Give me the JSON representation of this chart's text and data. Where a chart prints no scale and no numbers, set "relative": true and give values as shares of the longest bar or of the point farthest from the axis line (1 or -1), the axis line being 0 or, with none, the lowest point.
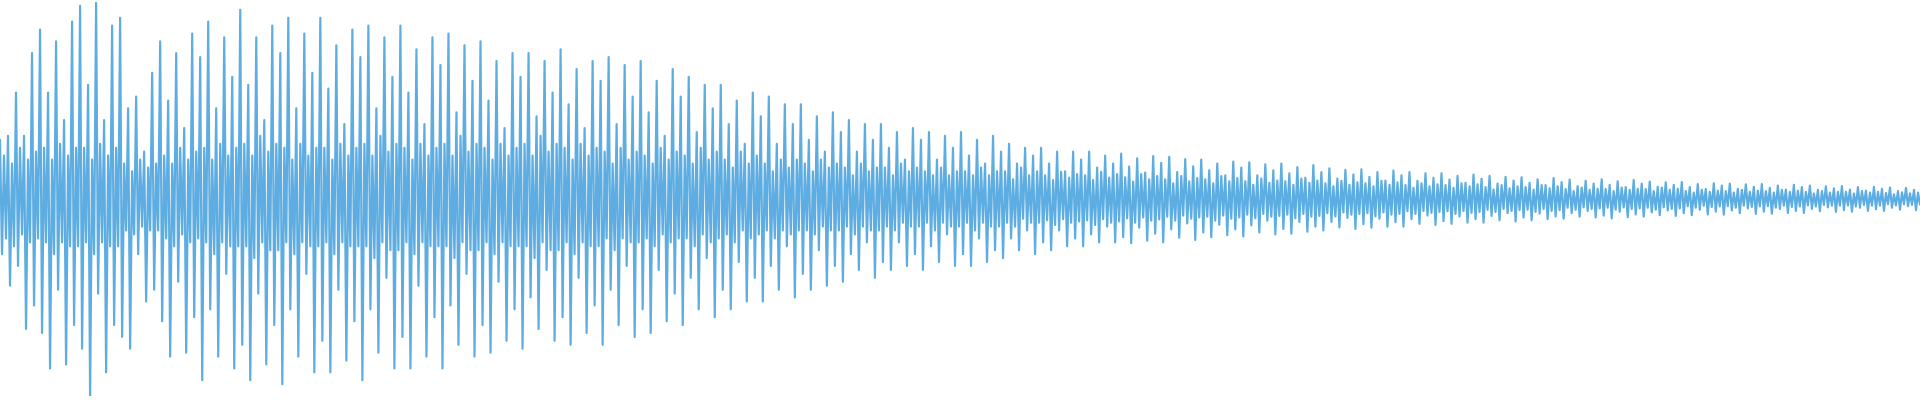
{
  "chart_data": {
    "type": "line",
    "relative": true,
    "color": "#5dade2",
    "categories": [
      null,
      null,
      null,
      null,
      null,
      null,
      null,
      null,
      null,
      null,
      null,
      null,
      null,
      null,
      null,
      null,
      null,
      null,
      null,
      null,
      null,
      null,
      null,
      null,
      null,
      null,
      null,
      null,
      null,
      null,
      null,
      null,
      null,
      null,
      null,
      null,
      null,
      null,
      null,
      null,
      null,
      null,
      null,
      null,
      null,
      null,
      null,
      null,
      null,
      null,
      null,
      null,
      null,
      null,
      null,
      null,
      null,
      null,
      null,
      null,
      null,
      null,
      null,
      null,
      null,
      null,
      null,
      null,
      null,
      null,
      null,
      null,
      null,
      null,
      null,
      null,
      null,
      null,
      null,
      null,
      null,
      null,
      null,
      null,
      null,
      null,
      null,
      null,
      null,
      null,
      null,
      null,
      null,
      null,
      null,
      null,
      null,
      null,
      null,
      null,
      null,
      null,
      null,
      null,
      null,
      null,
      null,
      null,
      null,
      null,
      null,
      null,
      null,
      null,
      null,
      null,
      null,
      null,
      null,
      null,
      null,
      null,
      null,
      null,
      null,
      null,
      null,
      null,
      null,
      null,
      null,
      null,
      null,
      null,
      null,
      null,
      null,
      null,
      null,
      null,
      null,
      null,
      null,
      null,
      null,
      null,
      null,
      null,
      null,
      null,
      null,
      null,
      null,
      null,
      null,
      null,
      null,
      null,
      null,
      null,
      null,
      null,
      null,
      null,
      null,
      null,
      null,
      null,
      null,
      null,
      null,
      null,
      null,
      null,
      null,
      null,
      null,
      null,
      null,
      null,
      null,
      null,
      null,
      null,
      null,
      null,
      null,
      null,
      null,
      null,
      null,
      null,
      null,
      null,
      null,
      null,
      null,
      null,
      null,
      null,
      null,
      null,
      null,
      null,
      null,
      null,
      null,
      null,
      null,
      null,
      null,
      null,
      null,
      null,
      null,
      null,
      null,
      null,
      null,
      null,
      null,
      null,
      null,
      null,
      null,
      null,
      null,
      null,
      null,
      null,
      null,
      null,
      null,
      null,
      null,
      null,
      null,
      null,
      null,
      null,
      null,
      null,
      null,
      null,
      null,
      null,
      null,
      null,
      null,
      null,
      null,
      null,
      null,
      null,
      null,
      null,
      null,
      null,
      null,
      null,
      null,
      null,
      null,
      null,
      null,
      null,
      null,
      null,
      null,
      null,
      null,
      null,
      null,
      null,
      null,
      null,
      null,
      null,
      null,
      null,
      null,
      null,
      null,
      null,
      null,
      null,
      null,
      null,
      null,
      null,
      null,
      null,
      null,
      null,
      null,
      null,
      null,
      null,
      null,
      null,
      null,
      null,
      null,
      null,
      null,
      null,
      null,
      null,
      null,
      null,
      null,
      null,
      null,
      null,
      null,
      null,
      null,
      null,
      null,
      null,
      null,
      null,
      null,
      null,
      null,
      null,
      null,
      null,
      null,
      null,
      null,
      null,
      null,
      null,
      null,
      null,
      null,
      null,
      null,
      null,
      null,
      null,
      null,
      null,
      null,
      null,
      null,
      null,
      null,
      null,
      null,
      null,
      null,
      null,
      null,
      null,
      null,
      null,
      null,
      null,
      null,
      null,
      null,
      null,
      null,
      null,
      null,
      null,
      null,
      null,
      null,
      null,
      null,
      null,
      null,
      null,
      null,
      null,
      null,
      null,
      null,
      null,
      null,
      null,
      null,
      null,
      null,
      null,
      null,
      null,
      null,
      null,
      null,
      null,
      null,
      null,
      null,
      null,
      null,
      null,
      null,
      null,
      null,
      null,
      null,
      null,
      null,
      null,
      null,
      null,
      null,
      null,
      null,
      null,
      null,
      null,
      null,
      null,
      null,
      null,
      null,
      null,
      null,
      null,
      null,
      null,
      null,
      null,
      null,
      null,
      null,
      null,
      null,
      null,
      null,
      null,
      null,
      null,
      null,
      null,
      null,
      null,
      null,
      null,
      null,
      null,
      null,
      null,
      null,
      null,
      null,
      null,
      null,
      null,
      null,
      null,
      null,
      null,
      null,
      null,
      null,
      null,
      null,
      null,
      null,
      null,
      null,
      null,
      null,
      null,
      null,
      null,
      null,
      null,
      null,
      null,
      null,
      null,
      null,
      null,
      null,
      null,
      null,
      null,
      null,
      null,
      null,
      null,
      null,
      null,
      null,
      null,
      null,
      null,
      null,
      null,
      null,
      null,
      null,
      null,
      null,
      null,
      null,
      null,
      null,
      null,
      null,
      null,
      null,
      null,
      null,
      null,
      null,
      null,
      null,
      null,
      null,
      null,
      null,
      null,
      null,
      null,
      null,
      null,
      null,
      null,
      null,
      null,
      null,
      null,
      null,
      null,
      null,
      null,
      null,
      null,
      null,
      null,
      null,
      null,
      null,
      null,
      null,
      null,
      null,
      null,
      null,
      null,
      null,
      null,
      null,
      null,
      null,
      null,
      null,
      null,
      null,
      null,
      null,
      null,
      null,
      null,
      null,
      null,
      null,
      null,
      null,
      null,
      null,
      null,
      null,
      null,
      null,
      null,
      null,
      null,
      null,
      null,
      null,
      null,
      null,
      null,
      null,
      null,
      null,
      null,
      null,
      null,
      null,
      null,
      null,
      null,
      null,
      null,
      null,
      null,
      null,
      null,
      null,
      null,
      null,
      null,
      null,
      null,
      null,
      null,
      null,
      null,
      null,
      null,
      null,
      null,
      null,
      null,
      null,
      null,
      null,
      null,
      null,
      null,
      null,
      null,
      null,
      null,
      null,
      null,
      null,
      null,
      null,
      null,
      null,
      null,
      null,
      null,
      null,
      null,
      null,
      null,
      null,
      null,
      null,
      null,
      null,
      null,
      null,
      null,
      null,
      null,
      null,
      null,
      null,
      null,
      null,
      null,
      null,
      null,
      null,
      null,
      null,
      null,
      null,
      null,
      null,
      null,
      null,
      null,
      null,
      null,
      null,
      null,
      null,
      null,
      null,
      null,
      null,
      null,
      null,
      null,
      null,
      null,
      null,
      null,
      null,
      null,
      null,
      null,
      null,
      null,
      null,
      null,
      null,
      null,
      null,
      null,
      null,
      null,
      null,
      null,
      null,
      null,
      null,
      null,
      null,
      null,
      null,
      null,
      null,
      null,
      null,
      null,
      null,
      null,
      null,
      null,
      null,
      null,
      null,
      null,
      null,
      null,
      null,
      null,
      null,
      null,
      null,
      null,
      null,
      null,
      null,
      null,
      null,
      null,
      null,
      null,
      null,
      null,
      null,
      null,
      null,
      null,
      null,
      null,
      null,
      null,
      null,
      null,
      null,
      null,
      null,
      null,
      null,
      null,
      null,
      null,
      null,
      null,
      null,
      null,
      null,
      null,
      null,
      null,
      null,
      null,
      null,
      null,
      null,
      null,
      null,
      null,
      null,
      null,
      null,
      null,
      null,
      null,
      null,
      null,
      null,
      null,
      null,
      null,
      null,
      null,
      null,
      null,
      null,
      null,
      null,
      null,
      null,
      null,
      null,
      null,
      null,
      null,
      null,
      null,
      null,
      null,
      null,
      null,
      null,
      null,
      null,
      null,
      null,
      null,
      null,
      null,
      null,
      null,
      null,
      null,
      null,
      null,
      null,
      null,
      null,
      null,
      null,
      null,
      null,
      null,
      null,
      null,
      null,
      null,
      null,
      null,
      null,
      null,
      null,
      null,
      null,
      null,
      null,
      null,
      null,
      null,
      null,
      null,
      null,
      null,
      null,
      null,
      null,
      null,
      null,
      null,
      null,
      null,
      null,
      null,
      null,
      null,
      null,
      null,
      null,
      null,
      null,
      null,
      null,
      null,
      null,
      null,
      null,
      null,
      null,
      null,
      null,
      null,
      null,
      null,
      null,
      null,
      null,
      null,
      null,
      null,
      null,
      null,
      null,
      null,
      null,
      null,
      null,
      null,
      null,
      null,
      null,
      null,
      null,
      null,
      null,
      null,
      null,
      null,
      null,
      null,
      null,
      null,
      null,
      null,
      null,
      null,
      null,
      null,
      null,
      null,
      null,
      null,
      null,
      null,
      null,
      null,
      null,
      null,
      null,
      null,
      null,
      null,
      null,
      null,
      null,
      null,
      null,
      null,
      null,
      null,
      null,
      null,
      null,
      null,
      null,
      null,
      null,
      null,
      null,
      null,
      null,
      null,
      null,
      null,
      null,
      null,
      null,
      null,
      null,
      null,
      null,
      null,
      null,
      null,
      null,
      null,
      null,
      null,
      null,
      null
    ],
    "values": [
      0.65,
      0.36,
      0.61,
      0.4,
      0.66,
      0.28,
      0.59,
      0.38,
      0.77,
      0.33,
      0.63,
      0.41,
      0.66,
      0.17,
      0.6,
      0.39,
      0.87,
      0.23,
      0.62,
      0.4,
      0.93,
      0.16,
      0.63,
      0.39,
      0.77,
      0.07,
      0.6,
      0.36,
      0.9,
      0.27,
      0.64,
      0.39,
      0.7,
      0.08,
      0.61,
      0.38,
      0.95,
      0.18,
      0.63,
      0.38,
      0.99,
      0.12,
      0.63,
      0.39,
      0.79,
      0,
      0.6,
      0.36,
      1,
      0.26,
      0.64,
      0.39,
      0.7,
      0.06,
      0.61,
      0.38,
      0.94,
      0.18,
      0.63,
      0.38,
      0.96,
      0.15,
      0.59,
      0.42,
      0.73,
      0.12,
      0.57,
      0.41,
      0.76,
      0.36,
      0.6,
      0.43,
      0.62,
      0.24,
      0.58,
      0.42,
      0.82,
      0.27,
      0.59,
      0.42,
      0.9,
      0.19,
      0.61,
      0.4,
      0.75,
      0.1,
      0.59,
      0.38,
      0.87,
      0.29,
      0.63,
      0.41,
      0.68,
      0.11,
      0.6,
      0.39,
      0.92,
      0.2,
      0.62,
      0.4,
      0.86,
      0.04,
      0.63,
      0.39,
      0.95,
      0.22,
      0.6,
      0.36,
      0.73,
      0.1,
      0.64,
      0.39,
      0.91,
      0.31,
      0.61,
      0.38,
      0.81,
      0.07,
      0.63,
      0.38,
      0.98,
      0.13,
      0.64,
      0.38,
      0.79,
      0.04,
      0.61,
      0.35,
      0.91,
      0.26,
      0.66,
      0.39,
      0.7,
      0.08,
      0.62,
      0.37,
      0.94,
      0.18,
      0.64,
      0.37,
      0.87,
      0.03,
      0.63,
      0.39,
      0.96,
      0.22,
      0.6,
      0.36,
      0.73,
      0.1,
      0.64,
      0.39,
      0.92,
      0.31,
      0.61,
      0.38,
      0.82,
      0.06,
      0.63,
      0.38,
      0.96,
      0.14,
      0.63,
      0.39,
      0.78,
      0.06,
      0.6,
      0.36,
      0.89,
      0.27,
      0.64,
      0.39,
      0.69,
      0.09,
      0.61,
      0.38,
      0.93,
      0.19,
      0.63,
      0.38,
      0.86,
      0.04,
      0.64,
      0.38,
      0.94,
      0.22,
      0.61,
      0.35,
      0.73,
      0.11,
      0.66,
      0.39,
      0.91,
      0.3,
      0.62,
      0.37,
      0.81,
      0.07,
      0.64,
      0.37,
      0.94,
      0.15,
      0.63,
      0.39,
      0.77,
      0.07,
      0.6,
      0.36,
      0.88,
      0.28,
      0.64,
      0.39,
      0.69,
      0.1,
      0.61,
      0.38,
      0.91,
      0.2,
      0.63,
      0.38,
      0.84,
      0.07,
      0.64,
      0.38,
      0.92,
      0.23,
      0.61,
      0.35,
      0.72,
      0.13,
      0.66,
      0.39,
      0.89,
      0.31,
      0.62,
      0.37,
      0.8,
      0.1,
      0.64,
      0.37,
      0.9,
      0.18,
      0.63,
      0.39,
      0.75,
      0.11,
      0.6,
      0.36,
      0.85,
      0.29,
      0.64,
      0.39,
      0.68,
      0.14,
      0.61,
      0.38,
      0.87,
      0.22,
      0.63,
      0.38,
      0.81,
      0.12,
      0.64,
      0.38,
      0.87,
      0.25,
      0.61,
      0.35,
      0.71,
      0.17,
      0.66,
      0.39,
      0.85,
      0.32,
      0.62,
      0.37,
      0.77,
      0.14,
      0.64,
      0.37,
      0.88,
      0.2,
      0.63,
      0.39,
      0.74,
      0.13,
      0.6,
      0.36,
      0.83,
      0.3,
      0.64,
      0.39,
      0.68,
      0.16,
      0.61,
      0.38,
      0.85,
      0.23,
      0.63,
      0.38,
      0.8,
      0.13,
      0.62,
      0.4,
      0.86,
      0.27,
      0.59,
      0.37,
      0.69,
      0.18,
      0.63,
      0.4,
      0.84,
      0.33,
      0.6,
      0.39,
      0.76,
      0.15,
      0.62,
      0.39,
      0.85,
      0.22,
      0.61,
      0.4,
      0.72,
      0.16,
      0.59,
      0.38,
      0.8,
      0.32,
      0.63,
      0.41,
      0.66,
      0.19,
      0.6,
      0.39,
      0.83,
      0.26,
      0.62,
      0.4,
      0.76,
      0.18,
      0.61,
      0.4,
      0.81,
      0.3,
      0.59,
      0.38,
      0.67,
      0.22,
      0.63,
      0.41,
      0.79,
      0.35,
      0.6,
      0.39,
      0.73,
      0.2,
      0.62,
      0.4,
      0.79,
      0.27,
      0.6,
      0.41,
      0.69,
      0.22,
      0.58,
      0.39,
      0.75,
      0.34,
      0.62,
      0.42,
      0.64,
      0.24,
      0.59,
      0.4,
      0.77,
      0.3,
      0.61,
      0.41,
      0.71,
      0.24,
      0.59,
      0.42,
      0.76,
      0.33,
      0.57,
      0.4,
      0.64,
      0.27,
      0.6,
      0.42,
      0.74,
      0.38,
      0.58,
      0.41,
      0.69,
      0.25,
      0.6,
      0.42,
      0.74,
      0.31,
      0.59,
      0.42,
      0.65,
      0.27,
      0.57,
      0.41,
      0.71,
      0.37,
      0.6,
      0.43,
      0.62,
      0.28,
      0.58,
      0.42,
      0.72,
      0.33,
      0.59,
      0.42,
      0.67,
      0.29,
      0.58,
      0.43,
      0.7,
      0.36,
      0.56,
      0.41,
      0.62,
      0.32,
      0.59,
      0.43,
      0.69,
      0.39,
      0.57,
      0.42,
      0.65,
      0.3,
      0.58,
      0.42,
      0.69,
      0.34,
      0.58,
      0.43,
      0.63,
      0.32,
      0.56,
      0.42,
      0.67,
      0.39,
      0.59,
      0.44,
      0.6,
      0.33,
      0.57,
      0.43,
      0.68,
      0.36,
      0.58,
      0.43,
      0.65,
      0.32,
      0.57,
      0.44,
      0.67,
      0.38,
      0.56,
      0.42,
      0.6,
      0.34,
      0.58,
      0.44,
      0.66,
      0.41,
      0.56,
      0.43,
      0.63,
      0.33,
      0.57,
      0.43,
      0.67,
      0.36,
      0.57,
      0.44,
      0.61,
      0.33,
      0.56,
      0.42,
      0.65,
      0.4,
      0.58,
      0.44,
      0.59,
      0.34,
      0.56,
      0.43,
      0.66,
      0.37,
      0.57,
      0.43,
      0.62,
      0.35,
      0.57,
      0.44,
      0.64,
      0.4,
      0.55,
      0.43,
      0.59,
      0.37,
      0.58,
      0.45,
      0.63,
      0.42,
      0.56,
      0.44,
      0.61,
      0.36,
      0.57,
      0.44,
      0.63,
      0.39,
      0.56,
      0.446,
      0.59,
      0.37,
      0.548,
      0.434,
      0.62,
      0.42,
      0.569,
      0.449,
      0.57,
      0.38,
      0.554,
      0.44,
      0.62,
      0.4,
      0.563,
      0.443,
      0.6,
      0.38,
      0.56,
      0.446,
      0.62,
      0.41,
      0.548,
      0.434,
      0.58,
      0.39,
      0.569,
      0.449,
      0.61,
      0.43,
      0.554,
      0.44,
      0.59,
      0.39,
      0.563,
      0.443,
      0.615,
      0.403,
      0.555,
      0.451,
      0.582,
      0.388,
      0.544,
      0.44,
      0.603,
      0.427,
      0.563,
      0.453,
      0.567,
      0.394,
      0.55,
      0.445,
      0.609,
      0.412,
      0.558,
      0.448,
      0.592,
      0.39,
      0.55,
      0.455,
      0.607,
      0.423,
      0.54,
      0.445,
      0.568,
      0.402,
      0.558,
      0.458,
      0.601,
      0.438,
      0.545,
      0.45,
      0.583,
      0.396,
      0.553,
      0.453,
      0.6,
      0.415,
      0.55,
      0.455,
      0.573,
      0.403,
      0.54,
      0.445,
      0.59,
      0.435,
      0.558,
      0.458,
      0.56,
      0.408,
      0.545,
      0.45,
      0.595,
      0.423,
      0.553,
      0.453,
      0.58,
      0.405,
      0.545,
      0.46,
      0.593,
      0.433,
      0.536,
      0.451,
      0.56,
      0.415,
      0.552,
      0.462,
      0.588,
      0.445,
      0.541,
      0.455,
      0.573,
      0.41,
      0.547,
      0.457,
      0.59,
      0.424,
      0.545,
      0.46,
      0.565,
      0.412,
      0.536,
      0.451,
      0.581,
      0.442,
      0.552,
      0.462,
      0.554,
      0.417,
      0.541,
      0.455,
      0.586,
      0.43,
      0.547,
      0.457,
      0.568,
      0.42,
      0.54,
      0.464,
      0.578,
      0.442,
      0.532,
      0.456,
      0.552,
      0.428,
      0.546,
      0.466,
      0.574,
      0.452,
      0.536,
      0.46,
      0.562,
      0.424,
      0.542,
      0.462,
      0.575,
      0.436,
      0.54,
      0.464,
      0.556,
      0.427,
      0.532,
      0.456,
      0.568,
      0.45,
      0.546,
      0.466,
      0.547,
      0.43,
      0.536,
      0.46,
      0.572,
      0.441,
      0.542,
      0.462,
      0.56,
      0.43,
      0.535,
      0.469,
      0.568,
      0.449,
      0.528,
      0.462,
      0.546,
      0.437,
      0.54,
      0.47,
      0.565,
      0.458,
      0.532,
      0.465,
      0.554,
      0.434,
      0.537,
      0.467,
      0.565,
      0.444,
      0.535,
      0.469,
      0.549,
      0.437,
      0.528,
      0.462,
      0.559,
      0.456,
      0.54,
      0.47,
      0.541,
      0.44,
      0.532,
      0.465,
      0.562,
      0.449,
      0.537,
      0.467,
      0.551,
      0.44,
      0.53,
      0.473,
      0.559,
      0.457,
      0.524,
      0.467,
      0.539,
      0.446,
      0.535,
      0.475,
      0.556,
      0.464,
      0.527,
      0.47,
      0.547,
      0.443,
      0.532,
      0.472,
      0.555,
      0.453,
      0.53,
      0.473,
      0.541,
      0.446,
      0.524,
      0.467,
      0.55,
      0.463,
      0.535,
      0.475,
      0.535,
      0.449,
      0.527,
      0.47,
      0.553,
      0.456,
      0.532,
      0.472,
      0.543,
      0.45,
      0.525,
      0.478,
      0.549,
      0.464,
      0.52,
      0.473,
      0.533,
      0.455,
      0.529,
      0.479,
      0.546,
      0.47,
      0.523,
      0.475,
      0.539,
      0.453,
      0.526,
      0.476,
      0.55,
      0.458,
      0.525,
      0.478,
      0.536,
      0.451,
      0.52,
      0.473,
      0.545,
      0.468,
      0.529,
      0.479,
      0.53,
      0.454,
      0.523,
      0.475,
      0.548,
      0.461,
      0.526,
      0.476,
      0.539,
      0.455,
      0.525,
      0.478,
      0.544,
      0.466,
      0.52,
      0.473,
      0.531,
      0.459,
      0.529,
      0.479,
      0.542,
      0.471,
      0.523,
      0.475,
      0.536,
      0.457,
      0.526,
      0.476,
      0.543,
      0.464,
      0.52,
      0.482,
      0.53,
      0.459,
      0.516,
      0.478,
      0.538,
      0.473,
      0.523,
      0.483,
      0.525,
      0.461,
      0.518,
      0.48,
      0.54,
      0.468,
      0.521,
      0.481,
      0.534,
      0.46,
      0.52,
      0.482,
      0.539,
      0.471,
      0.516,
      0.478,
      0.526,
      0.464,
      0.523,
      0.483,
      0.537,
      0.476,
      0.518,
      0.48,
      0.531,
      0.462,
      0.521,
      0.481,
      0.538,
      0.468,
      0.52,
      0.482,
      0.528,
      0.463,
      0.516,
      0.478,
      0.534,
      0.475,
      0.523,
      0.483,
      0.524,
      0.465,
      0.518,
      0.48,
      0.536,
      0.47,
      0.521,
      0.481,
      0.53,
      0.465,
      0.518,
      0.484,
      0.534,
      0.475,
      0.514,
      0.481,
      0.523,
      0.469,
      0.52,
      0.485,
      0.532,
      0.479,
      0.516,
      0.483,
      0.527,
      0.467,
      0.518,
      0.483,
      0.533,
      0.472,
      0.518,
      0.484,
      0.524,
      0.468,
      0.514,
      0.481,
      0.53,
      0.478,
      0.52,
      0.485,
      0.521,
      0.47,
      0.516,
      0.483,
      0.531,
      0.474,
      0.518,
      0.483,
      0.526,
      0.47,
      0.515,
      0.487,
      0.529,
      0.478,
      0.512,
      0.484,
      0.52,
      0.473,
      0.517,
      0.487,
      0.528,
      0.482,
      0.514,
      0.485,
      0.523,
      0.472,
      0.516,
      0.486
    ]
  }
}
